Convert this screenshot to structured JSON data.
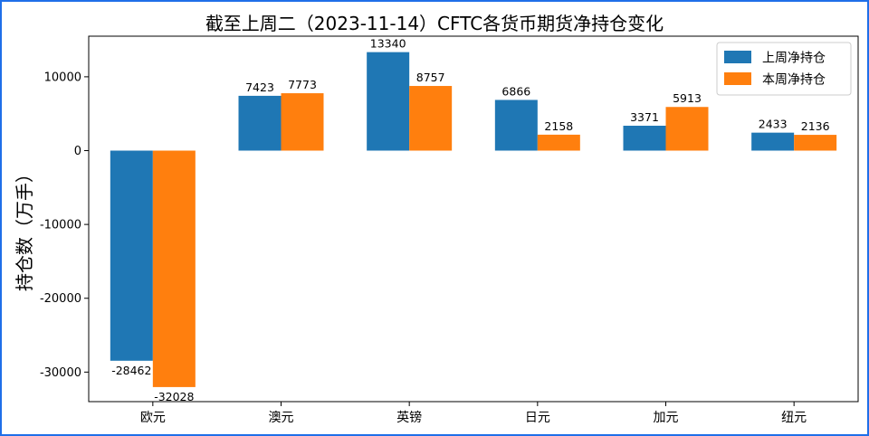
{
  "chart_data": {
    "type": "bar",
    "title": "截至上周二（2023-11-14）CFTC各货币期货净持仓变化",
    "xlabel": "",
    "ylabel": "持仓数（万手）",
    "categories": [
      "欧元",
      "澳元",
      "英镑",
      "日元",
      "加元",
      "纽元"
    ],
    "series": [
      {
        "name": "上周净持仓",
        "values": [
          -28462,
          7423,
          13340,
          6866,
          3371,
          2433
        ],
        "color": "#1f77b4"
      },
      {
        "name": "本周净持仓",
        "values": [
          -32028,
          7773,
          8757,
          2158,
          5913,
          2136
        ],
        "color": "#ff7f0e"
      }
    ],
    "ylim": [
      -34000,
      15500
    ],
    "yticks": [
      -30000,
      -20000,
      -10000,
      0,
      10000
    ],
    "grid": false,
    "legend": "top-right"
  }
}
